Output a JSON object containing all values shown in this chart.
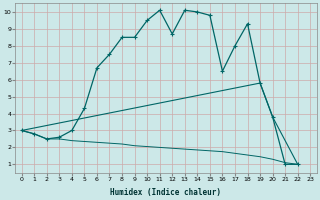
{
  "xlabel": "Humidex (Indice chaleur)",
  "background_color": "#cce8e8",
  "grid_color": "#b0d0d0",
  "line_color": "#006666",
  "xlim": [
    -0.5,
    23.5
  ],
  "ylim": [
    0.5,
    10.5
  ],
  "xticks": [
    0,
    1,
    2,
    3,
    4,
    5,
    6,
    7,
    8,
    9,
    10,
    11,
    12,
    13,
    14,
    15,
    16,
    17,
    18,
    19,
    20,
    21,
    22,
    23
  ],
  "yticks": [
    1,
    2,
    3,
    4,
    5,
    6,
    7,
    8,
    9,
    10
  ],
  "curve1_x": [
    0,
    1,
    2,
    3,
    4,
    5,
    6,
    7,
    8,
    9,
    10,
    11,
    12,
    13,
    14,
    15,
    16,
    17,
    18,
    19,
    20,
    21,
    22
  ],
  "curve1_y": [
    3.0,
    2.8,
    2.5,
    2.6,
    3.0,
    4.3,
    6.7,
    7.5,
    8.5,
    8.5,
    9.5,
    10.1,
    8.7,
    10.1,
    10.0,
    9.8,
    6.5,
    8.0,
    9.3,
    5.8,
    3.8,
    1.0,
    1.0
  ],
  "curve2_x": [
    0,
    19,
    20,
    22
  ],
  "curve2_y": [
    3.0,
    5.8,
    3.8,
    1.0
  ],
  "curve3_x": [
    0,
    1,
    2,
    3,
    4,
    5,
    6,
    7,
    8,
    9,
    10,
    11,
    12,
    13,
    14,
    15,
    16,
    17,
    18,
    19,
    20,
    21,
    22
  ],
  "curve3_y": [
    3.0,
    2.8,
    2.5,
    2.5,
    2.4,
    2.35,
    2.3,
    2.25,
    2.2,
    2.1,
    2.05,
    2.0,
    1.95,
    1.9,
    1.85,
    1.8,
    1.75,
    1.65,
    1.55,
    1.45,
    1.3,
    1.1,
    1.0
  ]
}
